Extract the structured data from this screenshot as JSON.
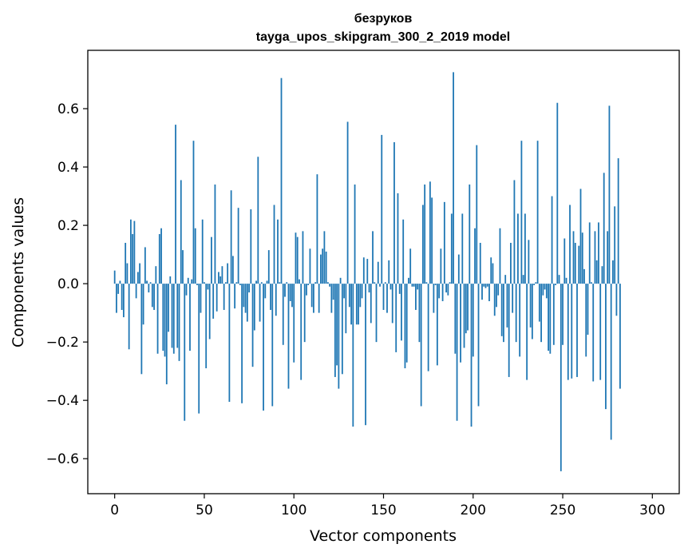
{
  "chart_data": {
    "type": "bar",
    "title": "безруков",
    "subtitle": "tayga_upos_skipgram_300_2_2019 model",
    "xlabel": "Vector components",
    "ylabel": "Components values",
    "xlim": [
      -15,
      315
    ],
    "ylim": [
      -0.72,
      0.8
    ],
    "xticks": [
      0,
      50,
      100,
      150,
      200,
      250,
      300
    ],
    "xtick_labels": [
      "0",
      "50",
      "100",
      "150",
      "200",
      "250",
      "300"
    ],
    "yticks": [
      -0.6,
      -0.4,
      -0.2,
      0.0,
      0.2,
      0.4,
      0.6
    ],
    "ytick_labels": [
      "−0.6",
      "−0.4",
      "−0.2",
      "0.0",
      "0.2",
      "0.4",
      "0.6"
    ],
    "grid": false,
    "bar_color": "#1f77b4",
    "x_start": 0,
    "values": [
      0.045,
      -0.1,
      -0.035,
      0.01,
      -0.09,
      -0.115,
      0.14,
      0.07,
      -0.225,
      0.22,
      0.17,
      0.215,
      -0.05,
      0.04,
      0.07,
      -0.31,
      -0.14,
      0.125,
      0.01,
      -0.03,
      0.005,
      -0.08,
      -0.09,
      0.06,
      -0.24,
      0.17,
      0.19,
      -0.23,
      -0.25,
      -0.345,
      -0.165,
      0.025,
      -0.22,
      -0.24,
      0.545,
      -0.22,
      -0.265,
      0.355,
      0.115,
      -0.47,
      -0.04,
      0.02,
      -0.23,
      0.015,
      0.49,
      0.19,
      -0.005,
      -0.445,
      -0.1,
      0.22,
      0.005,
      -0.29,
      -0.02,
      -0.19,
      0.16,
      -0.12,
      0.34,
      -0.095,
      0.04,
      0.025,
      0.06,
      -0.09,
      0.005,
      0.07,
      -0.405,
      0.32,
      0.095,
      -0.085,
      0.005,
      0.26,
      -0.005,
      -0.41,
      -0.08,
      -0.1,
      -0.13,
      -0.03,
      0.255,
      -0.285,
      -0.16,
      0.01,
      0.435,
      -0.13,
      0.005,
      -0.435,
      -0.05,
      0.01,
      0.115,
      -0.09,
      -0.42,
      0.27,
      -0.11,
      0.22,
      0.005,
      0.705,
      -0.21,
      -0.045,
      0.005,
      -0.36,
      -0.06,
      -0.08,
      -0.27,
      0.175,
      0.16,
      0.015,
      -0.33,
      0.18,
      -0.2,
      -0.04,
      -0.005,
      0.12,
      -0.08,
      -0.1,
      0.005,
      0.375,
      -0.1,
      0.1,
      0.12,
      0.18,
      0.11,
      0.005,
      -0.01,
      -0.1,
      -0.055,
      -0.32,
      -0.28,
      -0.36,
      0.02,
      -0.31,
      -0.05,
      -0.17,
      0.555,
      -0.08,
      -0.14,
      -0.49,
      0.34,
      -0.14,
      -0.14,
      -0.08,
      -0.05,
      0.09,
      -0.485,
      0.085,
      -0.03,
      -0.135,
      0.18,
      0.005,
      -0.2,
      0.075,
      -0.01,
      0.51,
      -0.09,
      0.005,
      -0.1,
      0.08,
      -0.02,
      -0.135,
      0.485,
      -0.235,
      0.31,
      -0.035,
      -0.195,
      0.22,
      -0.29,
      -0.27,
      0.02,
      0.12,
      -0.01,
      -0.01,
      -0.09,
      -0.02,
      -0.2,
      -0.42,
      0.27,
      0.34,
      0.005,
      -0.3,
      0.35,
      0.295,
      -0.1,
      -0.005,
      -0.28,
      -0.05,
      0.12,
      -0.06,
      0.28,
      -0.03,
      -0.04,
      0.005,
      0.24,
      0.725,
      -0.24,
      -0.47,
      0.1,
      -0.27,
      0.24,
      -0.22,
      -0.17,
      -0.16,
      0.34,
      -0.49,
      -0.25,
      0.19,
      0.475,
      -0.42,
      0.14,
      -0.055,
      -0.01,
      -0.015,
      -0.01,
      -0.06,
      0.09,
      0.07,
      -0.11,
      -0.08,
      -0.04,
      0.19,
      -0.18,
      -0.2,
      0.03,
      -0.15,
      -0.32,
      0.14,
      -0.1,
      0.355,
      -0.2,
      0.24,
      -0.25,
      0.49,
      0.03,
      0.24,
      -0.33,
      0.15,
      -0.15,
      -0.19,
      -0.005,
      0.005,
      0.49,
      -0.13,
      -0.2,
      -0.04,
      -0.02,
      -0.05,
      -0.23,
      -0.24,
      0.3,
      -0.21,
      -0.005,
      0.62,
      0.03,
      -0.643,
      -0.21,
      0.155,
      0.02,
      -0.33,
      0.27,
      -0.325,
      0.18,
      0.14,
      -0.32,
      0.13,
      0.325,
      0.175,
      0.05,
      -0.25,
      -0.175,
      0.21,
      0.005,
      -0.335,
      0.18,
      0.08,
      0.21,
      -0.33,
      0.06,
      0.38,
      -0.43,
      0.18,
      0.61,
      -0.535,
      0.08,
      0.265,
      -0.11,
      0.43,
      -0.36
    ]
  }
}
